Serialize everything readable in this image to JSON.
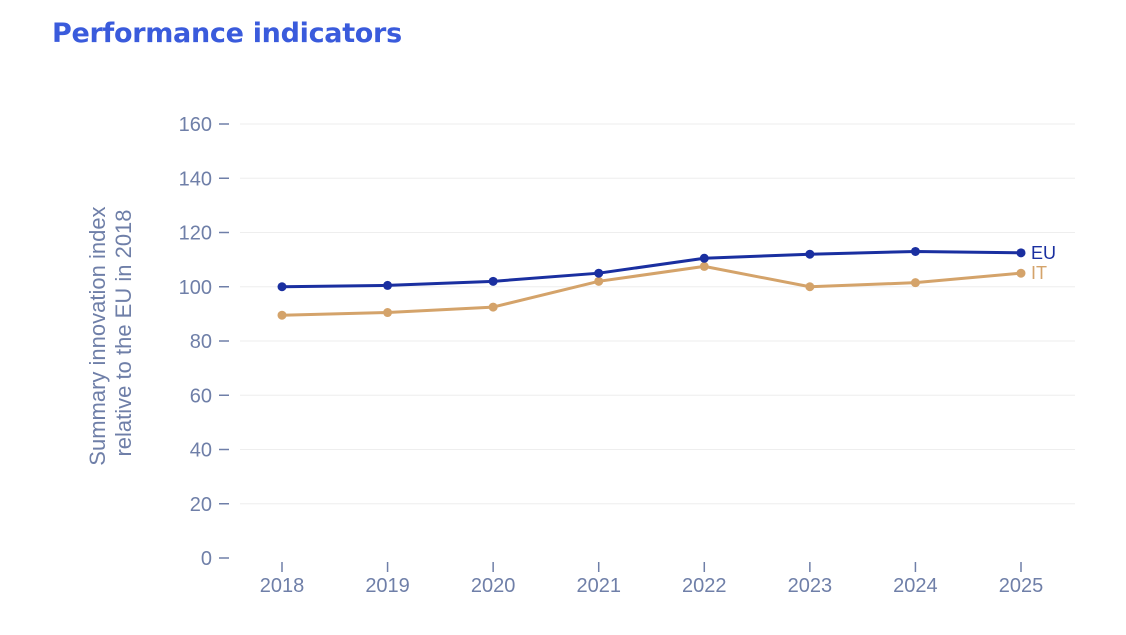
{
  "page": {
    "title": "Performance indicators"
  },
  "colors": {
    "title": "#3a5bdc",
    "axis_text": "#6f7fa8",
    "grid": "#eeeeee",
    "EU": "#1a2fa0",
    "IT": "#d4a36a"
  },
  "chart_data": {
    "type": "line",
    "title": "",
    "xlabel": "",
    "ylabel_lines": [
      "Summary innovation index",
      "relative to the EU in 2018"
    ],
    "x": [
      "2018",
      "2019",
      "2020",
      "2021",
      "2022",
      "2023",
      "2024",
      "2025"
    ],
    "ylim": [
      0,
      160
    ],
    "yticks": [
      0,
      20,
      40,
      60,
      80,
      100,
      120,
      140,
      160
    ],
    "grid": true,
    "legend": "end-of-line labels",
    "series": [
      {
        "name": "EU",
        "color": "#1a2fa0",
        "values": [
          100,
          100.5,
          102,
          105,
          110.5,
          112,
          113,
          112.5
        ]
      },
      {
        "name": "IT",
        "color": "#d4a36a",
        "values": [
          89.5,
          90.5,
          92.5,
          102,
          107.5,
          100,
          101.5,
          105
        ]
      }
    ]
  }
}
